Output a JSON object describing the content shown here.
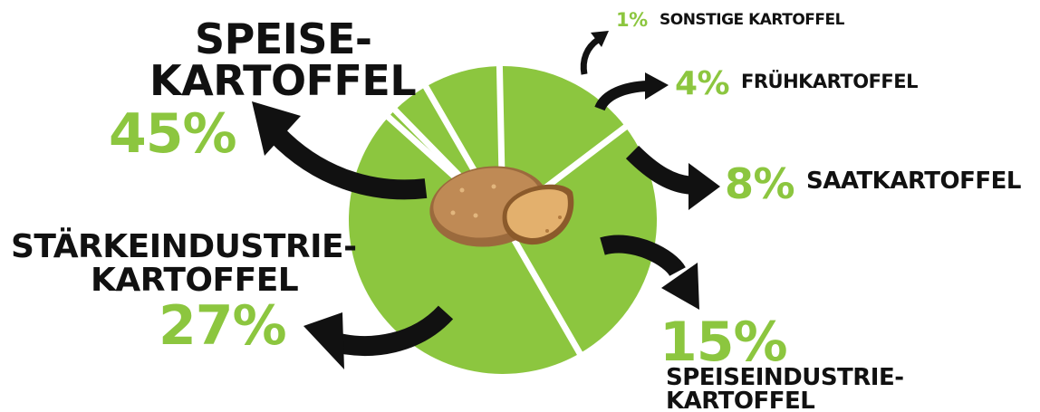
{
  "chart_data": {
    "type": "pie",
    "title": "",
    "slices": [
      {
        "name": "SPEISE-KARTOFFEL",
        "value": 45,
        "label": "45%"
      },
      {
        "name": "STÄRKEINDUSTRIE-KARTOFFEL",
        "value": 27,
        "label": "27%"
      },
      {
        "name": "SPEISEINDUSTRIE-KARTOFFEL",
        "value": 15,
        "label": "15%"
      },
      {
        "name": "SAATKARTOFFEL",
        "value": 8,
        "label": "8%"
      },
      {
        "name": "FRÜHKARTOFFEL",
        "value": 4,
        "label": "4%"
      },
      {
        "name": "SONSTIGE KARTOFFEL",
        "value": 1,
        "label": "1%"
      }
    ],
    "colors": {
      "slice": "#8cc63f",
      "divider": "#ffffff",
      "text": "#111111",
      "accent": "#8cc63f",
      "arrow": "#111111"
    },
    "center_icon": "potato-icon"
  },
  "labels": {
    "speise_line1": "SPEISE-",
    "speise_line2": "KARTOFFEL",
    "staerke_line1": "STÄRKEINDUSTRIE-",
    "staerke_line2": "KARTOFFEL",
    "speiseind_line1": "SPEISEINDUSTRIE-",
    "speiseind_line2": "KARTOFFEL"
  }
}
